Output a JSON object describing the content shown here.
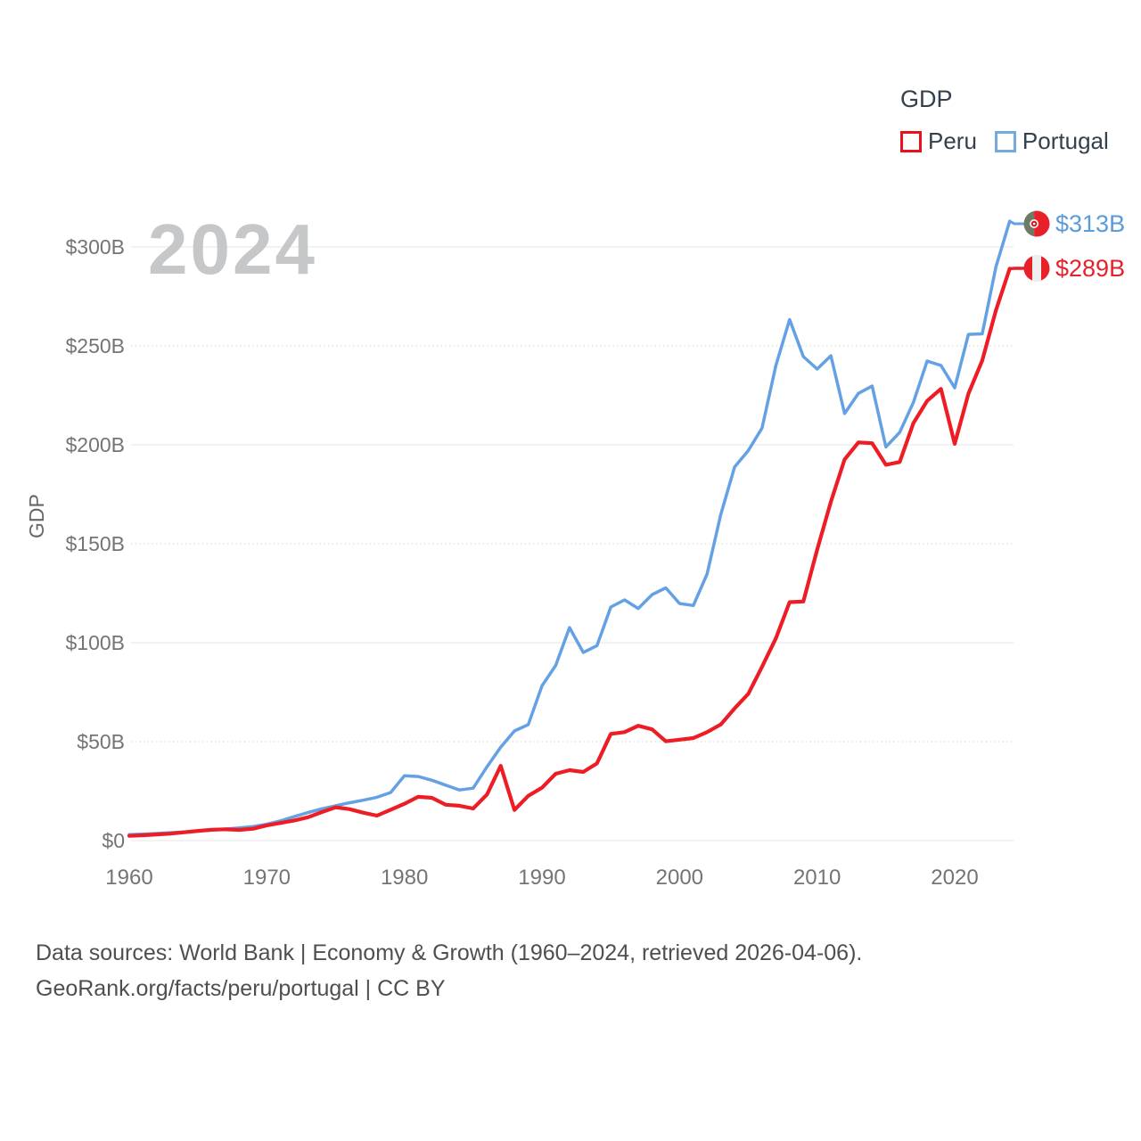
{
  "watermark_year": "2024",
  "y_axis_title": "GDP",
  "legend": {
    "title": "GDP",
    "items": [
      {
        "label": "Peru",
        "color": "#e8121d"
      },
      {
        "label": "Portugal",
        "color": "#74aadf"
      }
    ]
  },
  "end_labels": {
    "portugal": {
      "text": "$313B",
      "color": "#5b9bd8",
      "flag": "portugal-flag"
    },
    "peru": {
      "text": "$289B",
      "color": "#e8202a",
      "flag": "peru-flag"
    }
  },
  "footer": {
    "line1": "Data sources: World Bank | Economy & Growth (1960–2024, retrieved 2026-04-06).",
    "line2": "GeoRank.org/facts/peru/portugal | CC BY"
  },
  "chart_data": {
    "type": "line",
    "title": "GDP",
    "xlabel": "",
    "ylabel": "GDP",
    "ylim": [
      0,
      300
    ],
    "grid": "horizontal",
    "legend_position": "top-right",
    "x_ticks": [
      1960,
      1970,
      1980,
      1990,
      2000,
      2010,
      2020
    ],
    "y_ticks": [
      {
        "value": 0,
        "label": "$0"
      },
      {
        "value": 50,
        "label": "$50B"
      },
      {
        "value": 100,
        "label": "$100B"
      },
      {
        "value": 150,
        "label": "$150B"
      },
      {
        "value": 200,
        "label": "$200B"
      },
      {
        "value": 250,
        "label": "$250B"
      },
      {
        "value": 300,
        "label": "$300B"
      }
    ],
    "x": [
      1960,
      1961,
      1962,
      1963,
      1964,
      1965,
      1966,
      1967,
      1968,
      1969,
      1970,
      1971,
      1972,
      1973,
      1974,
      1975,
      1976,
      1977,
      1978,
      1979,
      1980,
      1981,
      1982,
      1983,
      1984,
      1985,
      1986,
      1987,
      1988,
      1989,
      1990,
      1991,
      1992,
      1993,
      1994,
      1995,
      1996,
      1997,
      1998,
      1999,
      2000,
      2001,
      2002,
      2003,
      2004,
      2005,
      2006,
      2007,
      2008,
      2009,
      2010,
      2011,
      2012,
      2013,
      2014,
      2015,
      2016,
      2017,
      2018,
      2019,
      2020,
      2021,
      2022,
      2023,
      2024
    ],
    "units": "billion USD",
    "series": [
      {
        "name": "Peru",
        "color": "#ed1c25",
        "line_width": 4.2,
        "values": [
          2.4,
          2.7,
          3.1,
          3.5,
          4.2,
          4.9,
          5.5,
          5.7,
          5.4,
          6.0,
          7.7,
          8.9,
          10.2,
          11.8,
          14.4,
          16.8,
          15.9,
          14.1,
          12.6,
          15.6,
          18.6,
          22.1,
          21.6,
          18.1,
          17.6,
          16.2,
          23.3,
          37.8,
          15.5,
          22.6,
          26.7,
          33.8,
          35.6,
          34.7,
          39.0,
          53.9,
          54.8,
          58.0,
          56.2,
          50.2,
          51.0,
          51.8,
          54.8,
          58.7,
          66.8,
          74.2,
          87.9,
          102.2,
          120.5,
          120.8,
          147.0,
          171.2,
          192.6,
          201.2,
          200.8,
          189.9,
          191.3,
          211.0,
          222.2,
          228.3,
          200.5,
          225.8,
          242.6,
          268.0,
          289.0
        ]
      },
      {
        "name": "Portugal",
        "color": "#64a1e4",
        "line_width": 3.5,
        "values": [
          3.0,
          3.3,
          3.6,
          4.0,
          4.4,
          4.8,
          5.3,
          5.8,
          6.4,
          7.1,
          8.3,
          10.0,
          12.1,
          14.2,
          16.1,
          17.6,
          19.1,
          20.4,
          21.9,
          24.3,
          32.8,
          32.4,
          30.5,
          28.0,
          25.6,
          26.5,
          37.3,
          47.2,
          55.4,
          58.6,
          78.2,
          88.5,
          107.6,
          95.1,
          98.5,
          118.0,
          121.6,
          117.3,
          124.3,
          127.7,
          119.8,
          118.8,
          134.7,
          164.8,
          188.8,
          197.1,
          208.5,
          240.1,
          263.3,
          244.6,
          238.3,
          245.0,
          215.8,
          226.0,
          229.7,
          198.9,
          206.3,
          221.5,
          242.3,
          240.1,
          228.8,
          255.8,
          256.1,
          290.0,
          313.0
        ]
      }
    ]
  }
}
